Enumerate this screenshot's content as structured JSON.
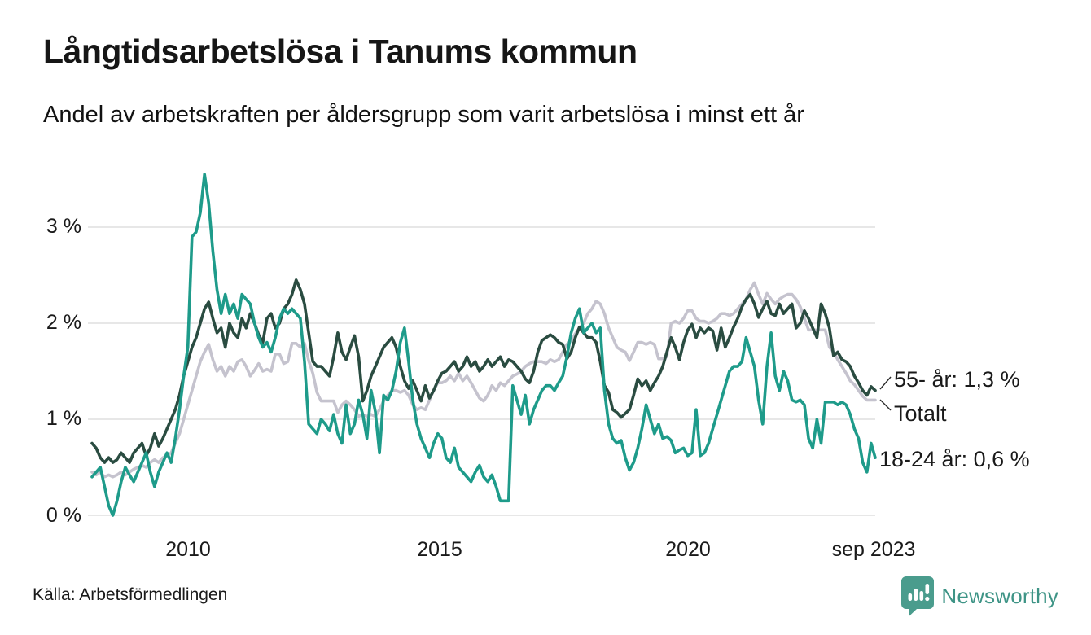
{
  "header": {
    "title": "Långtidsarbetslösa i Tanums kommun",
    "subtitle": "Andel av arbetskraften per åldersgrupp som varit arbetslösa i minst ett år"
  },
  "footer": {
    "source": "Källa: Arbetsförmedlingen",
    "brand": "Newsworthy"
  },
  "colors": {
    "teal": "#1e9b8a",
    "dark_green": "#2a4c41",
    "gray": "#c5c3ce",
    "grid": "#e7e7e7",
    "text": "#1a1a1a",
    "leader": "#2b2b2b",
    "brand_icon": "#4a9c8d",
    "brand_text": "#3e9486"
  },
  "chart_data": {
    "type": "line",
    "title": "Långtidsarbetslösa i Tanums kommun",
    "subtitle": "Andel av arbetskraften per åldersgrupp som varit arbetslösa i minst ett år",
    "frequency": "monthly",
    "x_start": "2008-01",
    "x_end": "2023-09",
    "xlabel": "",
    "ylabel": "",
    "ylim": [
      0,
      3.7
    ],
    "grid": "horizontal",
    "legend_position": "end-of-line-labels",
    "y_ticks": [
      "0 %",
      "1 %",
      "2 %",
      "3 %"
    ],
    "y_tick_values": [
      0,
      1,
      2,
      3
    ],
    "x_tick_labels": [
      "2010",
      "2015",
      "2020",
      "sep 2023"
    ],
    "series": [
      {
        "name": "Totalt",
        "color_key": "gray",
        "end_label": "Totalt",
        "end_value": 1.2,
        "values": [
          0.45,
          0.42,
          0.45,
          0.4,
          0.42,
          0.4,
          0.42,
          0.45,
          0.42,
          0.45,
          0.48,
          0.5,
          0.52,
          0.5,
          0.55,
          0.58,
          0.55,
          0.6,
          0.62,
          0.65,
          0.75,
          0.85,
          1.0,
          1.15,
          1.3,
          1.45,
          1.6,
          1.7,
          1.78,
          1.62,
          1.5,
          1.55,
          1.45,
          1.55,
          1.5,
          1.6,
          1.62,
          1.55,
          1.45,
          1.51,
          1.58,
          1.5,
          1.52,
          1.5,
          1.68,
          1.68,
          1.58,
          1.6,
          1.79,
          1.79,
          1.75,
          1.79,
          1.61,
          1.48,
          1.28,
          1.19,
          1.19,
          1.19,
          1.19,
          1.07,
          1.15,
          1.19,
          1.15,
          1.1,
          1.03,
          1.05,
          1.03,
          1.05,
          1.03,
          1.1,
          1.19,
          1.25,
          1.3,
          1.3,
          1.28,
          1.3,
          1.25,
          1.15,
          1.1,
          1.12,
          1.1,
          1.2,
          1.3,
          1.38,
          1.38,
          1.4,
          1.45,
          1.4,
          1.48,
          1.4,
          1.45,
          1.38,
          1.3,
          1.22,
          1.19,
          1.25,
          1.35,
          1.3,
          1.38,
          1.35,
          1.4,
          1.45,
          1.47,
          1.5,
          1.55,
          1.58,
          1.6,
          1.6,
          1.6,
          1.58,
          1.62,
          1.6,
          1.62,
          1.7,
          1.78,
          1.82,
          1.89,
          1.95,
          2.0,
          2.1,
          2.15,
          2.23,
          2.2,
          2.1,
          1.95,
          1.85,
          1.75,
          1.72,
          1.7,
          1.61,
          1.7,
          1.8,
          1.8,
          1.78,
          1.8,
          1.78,
          1.63,
          1.63,
          1.65,
          2.0,
          2.02,
          2.0,
          2.05,
          2.13,
          2.13,
          2.05,
          2.02,
          2.02,
          2.0,
          2.02,
          2.05,
          2.1,
          2.1,
          2.08,
          2.1,
          2.15,
          2.2,
          2.25,
          2.35,
          2.42,
          2.3,
          2.2,
          2.31,
          2.25,
          2.2,
          2.25,
          2.28,
          2.3,
          2.3,
          2.25,
          2.17,
          2.05,
          1.93,
          1.93,
          1.93,
          1.93,
          1.93,
          1.75,
          1.7,
          1.62,
          1.55,
          1.48,
          1.4,
          1.36,
          1.3,
          1.24,
          1.2,
          1.2,
          1.2
        ]
      },
      {
        "name": "55- år",
        "color_key": "dark_green",
        "end_label": "55- år: 1,3 %",
        "end_value": 1.3,
        "values": [
          0.75,
          0.7,
          0.6,
          0.55,
          0.6,
          0.55,
          0.58,
          0.65,
          0.6,
          0.55,
          0.65,
          0.7,
          0.75,
          0.62,
          0.7,
          0.85,
          0.72,
          0.8,
          0.9,
          1.0,
          1.1,
          1.25,
          1.45,
          1.6,
          1.75,
          1.85,
          2.0,
          2.15,
          2.22,
          2.05,
          1.9,
          1.95,
          1.75,
          2.0,
          1.9,
          1.85,
          2.05,
          1.95,
          2.1,
          2.0,
          1.88,
          1.8,
          2.05,
          2.1,
          1.95,
          2.0,
          2.15,
          2.2,
          2.3,
          2.45,
          2.35,
          2.2,
          1.9,
          1.6,
          1.55,
          1.55,
          1.5,
          1.45,
          1.65,
          1.9,
          1.7,
          1.62,
          1.75,
          1.87,
          1.65,
          1.19,
          1.3,
          1.45,
          1.55,
          1.65,
          1.75,
          1.8,
          1.85,
          1.75,
          1.55,
          1.4,
          1.32,
          1.4,
          1.3,
          1.19,
          1.35,
          1.22,
          1.3,
          1.4,
          1.48,
          1.5,
          1.55,
          1.6,
          1.5,
          1.55,
          1.65,
          1.55,
          1.6,
          1.5,
          1.55,
          1.62,
          1.55,
          1.6,
          1.65,
          1.55,
          1.62,
          1.6,
          1.55,
          1.5,
          1.42,
          1.38,
          1.5,
          1.7,
          1.82,
          1.85,
          1.88,
          1.85,
          1.8,
          1.78,
          1.63,
          1.7,
          1.85,
          1.96,
          1.9,
          1.85,
          1.85,
          1.8,
          1.6,
          1.35,
          1.28,
          1.1,
          1.07,
          1.02,
          1.06,
          1.1,
          1.25,
          1.42,
          1.35,
          1.4,
          1.3,
          1.38,
          1.45,
          1.55,
          1.7,
          1.85,
          1.75,
          1.62,
          1.8,
          1.93,
          1.99,
          1.85,
          1.95,
          1.9,
          1.95,
          1.92,
          1.72,
          1.95,
          1.75,
          1.85,
          1.96,
          2.05,
          2.17,
          2.25,
          2.3,
          2.2,
          2.06,
          2.15,
          2.23,
          2.1,
          2.08,
          2.2,
          2.1,
          2.15,
          2.2,
          1.95,
          2.0,
          2.13,
          2.05,
          1.95,
          1.85,
          2.2,
          2.1,
          1.95,
          1.66,
          1.7,
          1.62,
          1.6,
          1.55,
          1.45,
          1.38,
          1.3,
          1.25,
          1.34,
          1.3
        ]
      },
      {
        "name": "18-24 år",
        "color_key": "teal",
        "end_label": "18-24 år: 0,6 %",
        "end_value": 0.6,
        "values": [
          0.4,
          0.45,
          0.5,
          0.3,
          0.1,
          0.0,
          0.15,
          0.35,
          0.5,
          0.42,
          0.35,
          0.45,
          0.55,
          0.65,
          0.45,
          0.3,
          0.45,
          0.55,
          0.65,
          0.55,
          0.8,
          1.1,
          1.45,
          1.75,
          2.9,
          2.95,
          3.15,
          3.55,
          3.25,
          2.75,
          2.35,
          2.1,
          2.3,
          2.1,
          2.2,
          2.05,
          2.3,
          2.25,
          2.2,
          2.0,
          1.85,
          1.75,
          1.8,
          1.7,
          1.85,
          2.05,
          2.15,
          2.1,
          2.15,
          2.1,
          2.05,
          1.6,
          0.95,
          0.9,
          0.85,
          1.0,
          0.95,
          0.88,
          1.05,
          0.85,
          0.75,
          1.15,
          0.85,
          0.95,
          1.2,
          1.05,
          0.8,
          1.3,
          1.08,
          0.65,
          1.25,
          1.2,
          1.3,
          1.5,
          1.8,
          1.95,
          1.6,
          1.2,
          0.95,
          0.8,
          0.7,
          0.6,
          0.75,
          0.85,
          0.8,
          0.6,
          0.55,
          0.7,
          0.5,
          0.45,
          0.4,
          0.35,
          0.45,
          0.52,
          0.4,
          0.35,
          0.42,
          0.3,
          0.15,
          0.15,
          0.15,
          1.35,
          1.2,
          1.05,
          1.25,
          0.95,
          1.1,
          1.2,
          1.3,
          1.35,
          1.35,
          1.3,
          1.38,
          1.45,
          1.65,
          1.9,
          2.05,
          2.15,
          1.9,
          1.95,
          2.0,
          1.9,
          1.95,
          1.3,
          0.95,
          0.8,
          0.75,
          0.78,
          0.6,
          0.47,
          0.55,
          0.7,
          0.9,
          1.15,
          1.0,
          0.85,
          0.95,
          0.8,
          0.82,
          0.78,
          0.65,
          0.68,
          0.7,
          0.62,
          0.65,
          1.1,
          0.62,
          0.65,
          0.75,
          0.9,
          1.05,
          1.2,
          1.35,
          1.5,
          1.55,
          1.55,
          1.6,
          1.85,
          1.7,
          1.55,
          1.2,
          0.95,
          1.55,
          1.9,
          1.45,
          1.3,
          1.5,
          1.4,
          1.2,
          1.18,
          1.2,
          1.15,
          0.8,
          0.7,
          1.0,
          0.75,
          1.18,
          1.18,
          1.18,
          1.15,
          1.18,
          1.15,
          1.05,
          0.9,
          0.8,
          0.55,
          0.45,
          0.75,
          0.6
        ]
      }
    ]
  }
}
